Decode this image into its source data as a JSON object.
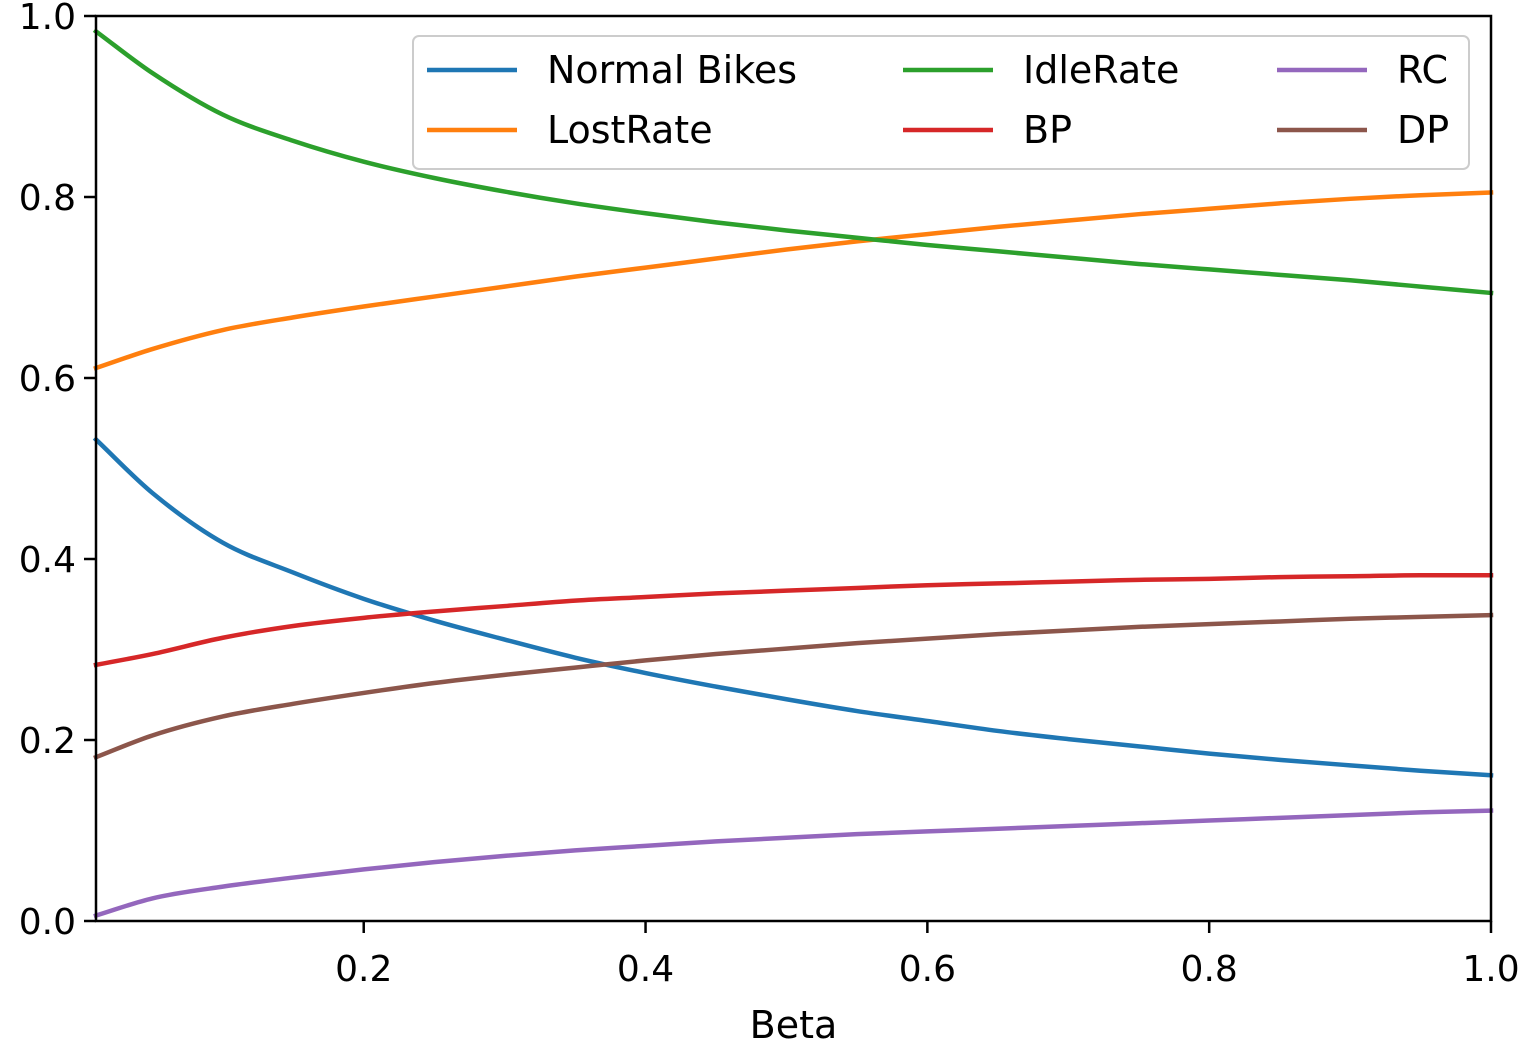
{
  "chart_data": {
    "type": "line",
    "title": "",
    "xlabel": "Beta",
    "ylabel": "",
    "xlim": [
      0.01,
      1.0
    ],
    "ylim": [
      0.0,
      1.0
    ],
    "x_ticks": [
      "0.2",
      "0.4",
      "0.6",
      "0.8",
      "1.0"
    ],
    "y_ticks": [
      "0.0",
      "0.2",
      "0.4",
      "0.6",
      "0.8",
      "1.0"
    ],
    "grid": false,
    "legend_placement": "top-right",
    "legend_columns": 3,
    "x": [
      0.01,
      0.05,
      0.1,
      0.15,
      0.2,
      0.25,
      0.3,
      0.35,
      0.4,
      0.45,
      0.5,
      0.55,
      0.6,
      0.65,
      0.7,
      0.75,
      0.8,
      0.85,
      0.9,
      0.95,
      1.0
    ],
    "series": [
      {
        "name": "Normal Bikes",
        "color": "#1f77b4",
        "values": [
          0.532,
          0.473,
          0.418,
          0.385,
          0.356,
          0.332,
          0.311,
          0.291,
          0.274,
          0.259,
          0.245,
          0.232,
          0.221,
          0.21,
          0.201,
          0.193,
          0.185,
          0.178,
          0.172,
          0.166,
          0.161
        ]
      },
      {
        "name": "LostRate",
        "color": "#ff7f0e",
        "values": [
          0.611,
          0.632,
          0.653,
          0.667,
          0.679,
          0.69,
          0.701,
          0.712,
          0.722,
          0.732,
          0.742,
          0.751,
          0.759,
          0.767,
          0.774,
          0.781,
          0.787,
          0.793,
          0.798,
          0.802,
          0.805
        ]
      },
      {
        "name": "IdleRate",
        "color": "#2ca02c",
        "values": [
          0.983,
          0.937,
          0.891,
          0.862,
          0.839,
          0.821,
          0.806,
          0.793,
          0.782,
          0.772,
          0.763,
          0.755,
          0.747,
          0.74,
          0.733,
          0.726,
          0.72,
          0.714,
          0.708,
          0.701,
          0.694
        ]
      },
      {
        "name": "BP",
        "color": "#d62728",
        "values": [
          0.283,
          0.295,
          0.313,
          0.326,
          0.335,
          0.342,
          0.348,
          0.354,
          0.358,
          0.362,
          0.365,
          0.368,
          0.371,
          0.373,
          0.375,
          0.377,
          0.378,
          0.38,
          0.381,
          0.382,
          0.382
        ]
      },
      {
        "name": "RC",
        "color": "#9467bd",
        "values": [
          0.006,
          0.025,
          0.038,
          0.048,
          0.057,
          0.065,
          0.072,
          0.078,
          0.083,
          0.088,
          0.092,
          0.096,
          0.099,
          0.102,
          0.105,
          0.108,
          0.111,
          0.114,
          0.117,
          0.12,
          0.122
        ]
      },
      {
        "name": "DP",
        "color": "#8c564b",
        "values": [
          0.181,
          0.205,
          0.226,
          0.24,
          0.252,
          0.263,
          0.272,
          0.28,
          0.288,
          0.295,
          0.301,
          0.307,
          0.312,
          0.317,
          0.321,
          0.325,
          0.328,
          0.331,
          0.334,
          0.336,
          0.338
        ]
      }
    ]
  }
}
